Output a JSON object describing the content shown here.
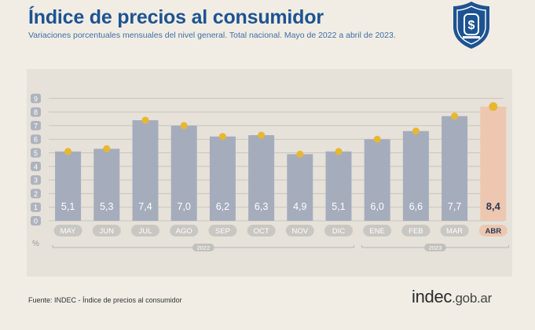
{
  "header": {
    "title": "Índice de precios al consumidor",
    "subtitle": "Variaciones porcentuales mensuales del nivel general. Total nacional. Mayo de 2022 a abril de 2023."
  },
  "footer": {
    "source": "Fuente: INDEC - Índice de precios al consumidor",
    "brand_main": "indec",
    "brand_suffix": ".gob.ar"
  },
  "colors": {
    "bar": "#a5adbc",
    "bar_highlight": "#edc7b0",
    "dot": "#e8b732",
    "title": "#1d5392",
    "label_bg": "#c9c7c2"
  },
  "chart_data": {
    "type": "bar",
    "categories": [
      "MAY",
      "JUN",
      "JUL",
      "AGO",
      "SEP",
      "OCT",
      "NOV",
      "DIC",
      "ENE",
      "FEB",
      "MAR",
      "ABR"
    ],
    "values": [
      5.1,
      5.3,
      7.4,
      7.0,
      6.2,
      6.3,
      4.9,
      5.1,
      6.0,
      6.6,
      7.7,
      8.4
    ],
    "data_labels": [
      "5,1",
      "5,3",
      "7,4",
      "7,0",
      "6,2",
      "6,3",
      "4,9",
      "5,1",
      "6,0",
      "6,6",
      "7,7",
      "8,4"
    ],
    "highlight_index": 11,
    "y_ticks": [
      0,
      1,
      2,
      3,
      4,
      5,
      6,
      7,
      8,
      9
    ],
    "ylim": [
      0,
      9
    ],
    "ylabel": "%",
    "year_groups": [
      {
        "label": "2022",
        "start": 0,
        "end": 7
      },
      {
        "label": "2023",
        "start": 8,
        "end": 11
      }
    ],
    "grid": true
  }
}
